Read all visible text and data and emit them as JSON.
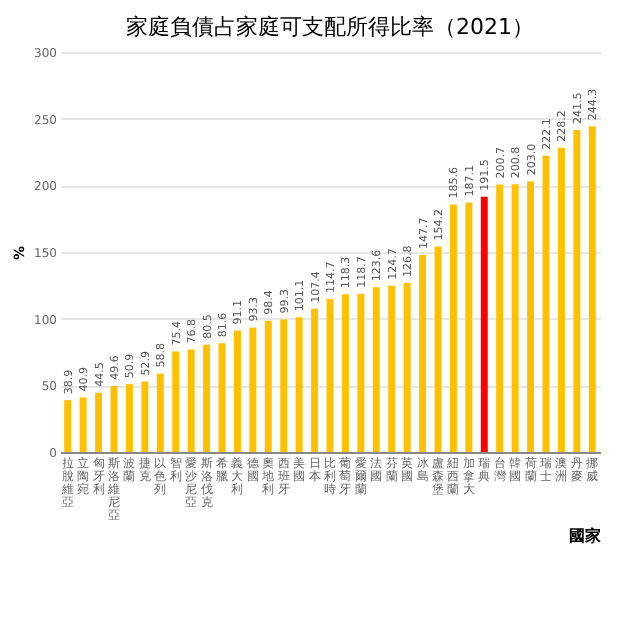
{
  "chart_data": {
    "type": "bar",
    "title": "家庭負債占家庭可支配所得比率（2021）",
    "xlabel": "國家",
    "ylabel": "%",
    "categories": [
      "拉脫維亞",
      "立陶宛",
      "匈牙利",
      "斯洛維尼亞",
      "波蘭",
      "捷克",
      "以色列",
      "智利",
      "愛沙尼亞",
      "斯洛伐克",
      "希臘",
      "義大利",
      "德國",
      "奧地利",
      "西班牙",
      "美國",
      "日本",
      "比利時",
      "葡萄牙",
      "愛爾蘭",
      "法國",
      "芬蘭",
      "英國",
      "冰島",
      "盧森堡",
      "紐西蘭",
      "加拿大",
      "瑞典",
      "台灣",
      "韓國",
      "荷蘭",
      "瑞士",
      "澳洲",
      "丹麥",
      "挪威"
    ],
    "values": [
      38.9,
      40.9,
      44.5,
      49.6,
      50.9,
      52.9,
      58.8,
      75.4,
      76.8,
      80.5,
      81.6,
      91.1,
      93.3,
      98.4,
      99.3,
      101.1,
      107.4,
      114.7,
      118.3,
      118.7,
      123.6,
      124.7,
      126.8,
      147.7,
      154.2,
      185.6,
      187.1,
      191.5,
      200.7,
      200.8,
      203.0,
      222.1,
      228.2,
      241.5,
      244.3
    ],
    "colors": [
      "#ffc000",
      "#ffc000",
      "#ffc000",
      "#ffc000",
      "#ffc000",
      "#ffc000",
      "#ffc000",
      "#ffc000",
      "#ffc000",
      "#ffc000",
      "#ffc000",
      "#ffc000",
      "#ffc000",
      "#ffc000",
      "#ffc000",
      "#ffc000",
      "#ffc000",
      "#ffc000",
      "#ffc000",
      "#ffc000",
      "#ffc000",
      "#ffc000",
      "#ffc000",
      "#ffc000",
      "#ffc000",
      "#ffc000",
      "#ffc000",
      "#ff0000",
      "#ffc000",
      "#ffc000",
      "#ffc000",
      "#ffc000",
      "#ffc000",
      "#ffc000",
      "#ffc000"
    ],
    "ylim": [
      0,
      300
    ],
    "yticks": [
      0,
      50,
      100,
      150,
      200,
      250,
      300
    ],
    "value_labels": [
      "38.9",
      "40.9",
      "44.5",
      "49.6",
      "50.9",
      "52.9",
      "58.8",
      "75.4",
      "76.8",
      "80.5",
      "81.6",
      "91.1",
      "93.3",
      "98.4",
      "99.3",
      "101.1",
      "107.4",
      "114.7",
      "118.3",
      "118.7",
      "123.6",
      "124.7",
      "126.8",
      "147.7",
      "154.2",
      "185.6",
      "187.1",
      "191.5",
      "200.7",
      "200.8",
      "203.0",
      "222.1",
      "228.2",
      "241.5",
      "244.3"
    ],
    "grid": "y"
  }
}
